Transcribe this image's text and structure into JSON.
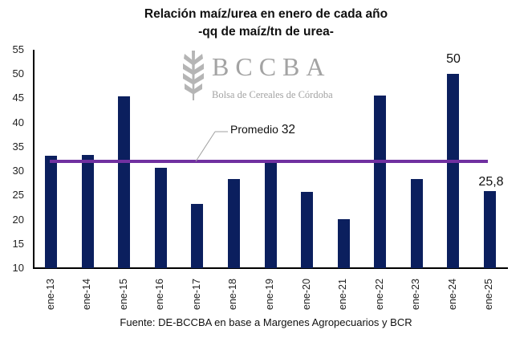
{
  "chart_data": {
    "type": "bar",
    "title": "Relación maíz/urea en enero de cada año",
    "subtitle": "-qq de maíz/tn de urea-",
    "xlabel": "",
    "ylabel": "",
    "ylim": [
      10,
      55
    ],
    "yticks": [
      10,
      15,
      20,
      25,
      30,
      35,
      40,
      45,
      50,
      55
    ],
    "grid": false,
    "legend": null,
    "categories": [
      "ene-13",
      "ene-14",
      "ene-15",
      "ene-16",
      "ene-17",
      "ene-18",
      "ene-19",
      "ene-20",
      "ene-21",
      "ene-22",
      "ene-23",
      "ene-24",
      "ene-25"
    ],
    "values": [
      33.2,
      33.3,
      45.4,
      30.7,
      23.2,
      28.4,
      31.7,
      25.7,
      20.1,
      45.6,
      28.4,
      50.0,
      25.8
    ],
    "series": [
      {
        "name": "Relación maíz/urea",
        "color": "#0b1f5e",
        "values": [
          33.2,
          33.3,
          45.4,
          30.7,
          23.2,
          28.4,
          31.7,
          25.7,
          20.1,
          45.6,
          28.4,
          50.0,
          25.8
        ]
      },
      {
        "name": "Promedio",
        "type": "line",
        "color": "#7030a0",
        "value": 32
      }
    ],
    "annotations": [
      {
        "text": "Promedio 32",
        "target": "average-line"
      },
      {
        "text": "50",
        "category": "ene-24"
      },
      {
        "text": "25,8",
        "category": "ene-25"
      }
    ],
    "source": "Fuente: DE-BCCBA en base a Margenes Agropecuarios y BCR"
  },
  "header": {
    "title": "Relación maíz/urea en enero de cada año",
    "subtitle": "-qq de maíz/tn de urea-"
  },
  "average": {
    "label": "Promedio",
    "value_label": "32"
  },
  "data_labels": {
    "ene24": "50",
    "ene25": "25,8"
  },
  "watermark": {
    "logo": "wheat-icon",
    "name": "BCCBA",
    "subtitle": "Bolsa de Cereales de Córdoba"
  },
  "footer": {
    "source": "Fuente: DE-BCCBA en base a Margenes Agropecuarios y BCR"
  },
  "colors": {
    "bar": "#0b1f5e",
    "average_line": "#7030a0"
  }
}
